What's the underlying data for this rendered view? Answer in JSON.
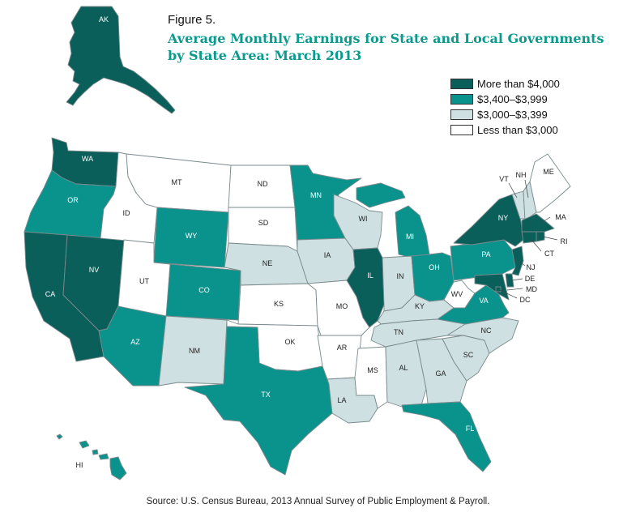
{
  "figure": {
    "label": "Figure 5.",
    "title_line1": "Average Monthly Earnings for State and Local Governments",
    "title_line2": "by State Area: March 2013",
    "source": "Source: U.S. Census Bureau, 2013 Annual Survey of Public Employment & Payroll."
  },
  "legend": [
    {
      "id": "high",
      "label": "More than $4,000",
      "color": "#0b5f5b"
    },
    {
      "id": "mid",
      "label": "$3,400–$3,999",
      "color": "#0a938c"
    },
    {
      "id": "low",
      "label": "$3,000–$3,399",
      "color": "#cfe0e3"
    },
    {
      "id": "none",
      "label": "Less than $3,000",
      "color": "#ffffff"
    }
  ],
  "states": [
    {
      "code": "AK",
      "category": "high"
    },
    {
      "code": "HI",
      "category": "mid"
    },
    {
      "code": "WA",
      "category": "high"
    },
    {
      "code": "OR",
      "category": "mid"
    },
    {
      "code": "CA",
      "category": "high"
    },
    {
      "code": "NV",
      "category": "high"
    },
    {
      "code": "ID",
      "category": "none"
    },
    {
      "code": "MT",
      "category": "none"
    },
    {
      "code": "WY",
      "category": "mid"
    },
    {
      "code": "UT",
      "category": "none"
    },
    {
      "code": "CO",
      "category": "mid"
    },
    {
      "code": "AZ",
      "category": "mid"
    },
    {
      "code": "NM",
      "category": "low"
    },
    {
      "code": "ND",
      "category": "none"
    },
    {
      "code": "SD",
      "category": "none"
    },
    {
      "code": "NE",
      "category": "low"
    },
    {
      "code": "KS",
      "category": "none"
    },
    {
      "code": "OK",
      "category": "none"
    },
    {
      "code": "TX",
      "category": "mid"
    },
    {
      "code": "MN",
      "category": "mid"
    },
    {
      "code": "IA",
      "category": "low"
    },
    {
      "code": "MO",
      "category": "none"
    },
    {
      "code": "AR",
      "category": "none"
    },
    {
      "code": "LA",
      "category": "low"
    },
    {
      "code": "WI",
      "category": "low"
    },
    {
      "code": "IL",
      "category": "high"
    },
    {
      "code": "MS",
      "category": "none"
    },
    {
      "code": "MI",
      "category": "mid"
    },
    {
      "code": "IN",
      "category": "low"
    },
    {
      "code": "KY",
      "category": "low"
    },
    {
      "code": "TN",
      "category": "low"
    },
    {
      "code": "AL",
      "category": "low"
    },
    {
      "code": "OH",
      "category": "mid"
    },
    {
      "code": "WV",
      "category": "none"
    },
    {
      "code": "GA",
      "category": "low"
    },
    {
      "code": "FL",
      "category": "mid"
    },
    {
      "code": "SC",
      "category": "low"
    },
    {
      "code": "NC",
      "category": "low"
    },
    {
      "code": "VA",
      "category": "mid"
    },
    {
      "code": "PA",
      "category": "mid"
    },
    {
      "code": "NY",
      "category": "high"
    },
    {
      "code": "VT",
      "category": "low"
    },
    {
      "code": "NH",
      "category": "low"
    },
    {
      "code": "ME",
      "category": "none"
    },
    {
      "code": "MA",
      "category": "high"
    },
    {
      "code": "RI",
      "category": "high"
    },
    {
      "code": "CT",
      "category": "high"
    },
    {
      "code": "NJ",
      "category": "high"
    },
    {
      "code": "DE",
      "category": "high"
    },
    {
      "code": "MD",
      "category": "high"
    },
    {
      "code": "DC",
      "category": "high"
    }
  ]
}
